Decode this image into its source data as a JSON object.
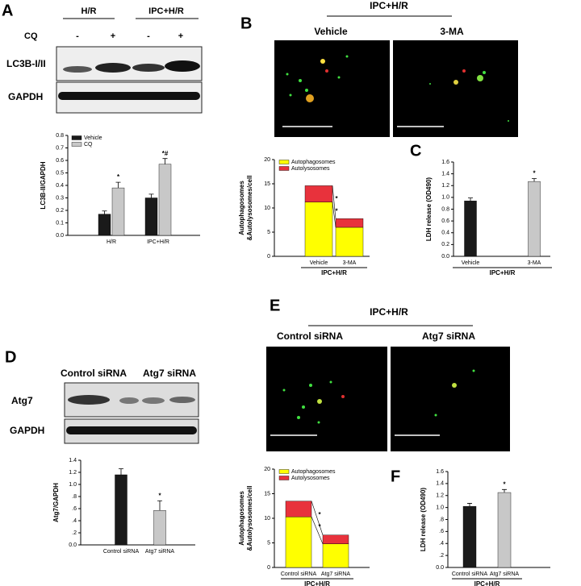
{
  "chart_data": [
    {
      "type": "bar",
      "ylabel": "LC3B-II/GAPDH",
      "categories": [
        "H/R",
        "IPC+H/R"
      ],
      "series": [
        {
          "name": "Vehicle",
          "color": "#1a1a1a",
          "values": [
            0.17,
            0.3
          ],
          "errors": [
            0.025,
            0.03
          ]
        },
        {
          "name": "CQ",
          "color": "#c8c8c8",
          "values": [
            0.38,
            0.57
          ],
          "errors": [
            0.045,
            0.045
          ]
        }
      ],
      "ylim": [
        0,
        0.8
      ],
      "yticks": [
        {
          "value": 0,
          "label": "0.0"
        },
        0.1,
        0.2,
        0.3,
        0.4,
        0.5,
        0.6,
        0.7,
        0.8
      ],
      "annotations": [
        {
          "text": "*",
          "category": "H/R",
          "series": "CQ"
        },
        {
          "text": "*#",
          "category": "IPC+H/R",
          "series": "CQ"
        }
      ]
    },
    {
      "type": "stacked",
      "ylabel": [
        "Autophagosomes",
        "&Autolysosomes/cell"
      ],
      "xlabel": "IPC+H/R",
      "categories": [
        "Vehicle",
        "3-MA"
      ],
      "series": [
        {
          "name": "Autophagosomes",
          "color": "#ffff00",
          "values": [
            11.2,
            6
          ]
        },
        {
          "name": "Autolysosomes",
          "color": "#e8323c",
          "values": [
            3.4,
            1.8
          ]
        }
      ],
      "ylim": [
        0,
        20
      ],
      "yticks": [
        0,
        5,
        10,
        15,
        20
      ],
      "annotations": [
        {
          "text": "*",
          "series": "Autolysosomes"
        },
        {
          "text": "*",
          "series": "Autophagosomes"
        }
      ]
    },
    {
      "type": "bar",
      "ylabel": "LDH release (OD490)",
      "xlabel": "IPC+H/R",
      "categories": [
        "Vehicle",
        "3-MA"
      ],
      "values": [
        0.94,
        1.27
      ],
      "errors": [
        0.05,
        0.05
      ],
      "colors": [
        "#1a1a1a",
        "#c8c8c8"
      ],
      "ylim": [
        0,
        1.6
      ],
      "yticks": [
        {
          "value": 0,
          "label": "0.0"
        },
        {
          "value": 0.2,
          "label": "0.2"
        },
        {
          "value": 0.4,
          "label": "0.4"
        },
        {
          "value": 0.6,
          "label": "0.6"
        },
        {
          "value": 0.8,
          "label": "0.8"
        },
        {
          "value": 1,
          "label": "1.0"
        },
        1.2,
        1.4,
        1.6
      ],
      "annotations": [
        {
          "text": "*",
          "category": "3-MA"
        }
      ]
    },
    {
      "type": "bar",
      "ylabel": "Atg7/GAPDH",
      "categories": [
        "Control siRNA",
        "Atg7 siRNA"
      ],
      "values": [
        1.16,
        0.57
      ],
      "errors": [
        0.1,
        0.16
      ],
      "colors": [
        "#1a1a1a",
        "#c8c8c8"
      ],
      "ylim": [
        0,
        1.4
      ],
      "yticks": [
        {
          "value": 0,
          "label": "0.0"
        },
        {
          "value": 0.2,
          "label": ".2"
        },
        {
          "value": 0.4,
          "label": ".4"
        },
        {
          "value": 0.6,
          "label": ".6"
        },
        {
          "value": 0.8,
          "label": ".8"
        },
        {
          "value": 1,
          "label": "1.0"
        },
        1.2,
        1.4
      ],
      "annotations": [
        {
          "text": "*",
          "category": "Atg7 siRNA"
        }
      ]
    },
    {
      "type": "stacked",
      "ylabel": [
        "Autophagosomes",
        "&Autolysosomes/cell"
      ],
      "xlabel": "IPC+H/R",
      "categories": [
        "Control siRNA",
        "Atg7 siRNA"
      ],
      "series": [
        {
          "name": "Autophagosomes",
          "color": "#ffff00",
          "values": [
            10.3,
            4.8
          ]
        },
        {
          "name": "Autolysosomes",
          "color": "#e8323c",
          "values": [
            3.2,
            1.8
          ]
        }
      ],
      "ylim": [
        0,
        20
      ],
      "yticks": [
        0,
        5,
        10,
        15,
        20
      ],
      "annotations": [
        {
          "text": "*",
          "series": "Autolysosomes"
        },
        {
          "text": "*",
          "series": "Autophagosomes"
        }
      ]
    },
    {
      "type": "bar",
      "ylabel": "LDH release (OD490)",
      "xlabel": "IPC+H/R",
      "categories": [
        "Control siRNA",
        "Atg7 siRNA"
      ],
      "values": [
        1.02,
        1.25
      ],
      "errors": [
        0.05,
        0.05
      ],
      "colors": [
        "#1a1a1a",
        "#c8c8c8"
      ],
      "ylim": [
        0,
        1.6
      ],
      "yticks": [
        {
          "value": 0,
          "label": "0.0"
        },
        {
          "value": 0.2,
          "label": ".2"
        },
        {
          "value": 0.4,
          "label": ".4"
        },
        {
          "value": 0.6,
          "label": ".6"
        },
        {
          "value": 0.8,
          "label": ".8"
        },
        {
          "value": 1,
          "label": "1.0"
        },
        1.2,
        1.4,
        1.6
      ],
      "annotations": [
        {
          "text": "*",
          "category": "Atg7 siRNA"
        }
      ]
    }
  ],
  "panel_a": {
    "letter": "A",
    "groups": [
      "H/R",
      "IPC+H/R"
    ],
    "row_label": "CQ",
    "signs": [
      "-",
      "+",
      "-",
      "+"
    ],
    "blots": [
      "LC3B-I/II",
      "GAPDH"
    ]
  },
  "panel_b": {
    "letter": "B",
    "title": "IPC+H/R",
    "images": [
      "Vehicle",
      "3-MA"
    ]
  },
  "panel_c": {
    "letter": "C"
  },
  "panel_d": {
    "letter": "D",
    "groups": [
      "Control siRNA",
      "Atg7 siRNA"
    ],
    "blots": [
      "Atg7",
      "GAPDH"
    ]
  },
  "panel_e": {
    "letter": "E",
    "title": "IPC+H/R",
    "images": [
      "Control siRNA",
      "Atg7 siRNA"
    ]
  },
  "panel_f": {
    "letter": "F"
  }
}
